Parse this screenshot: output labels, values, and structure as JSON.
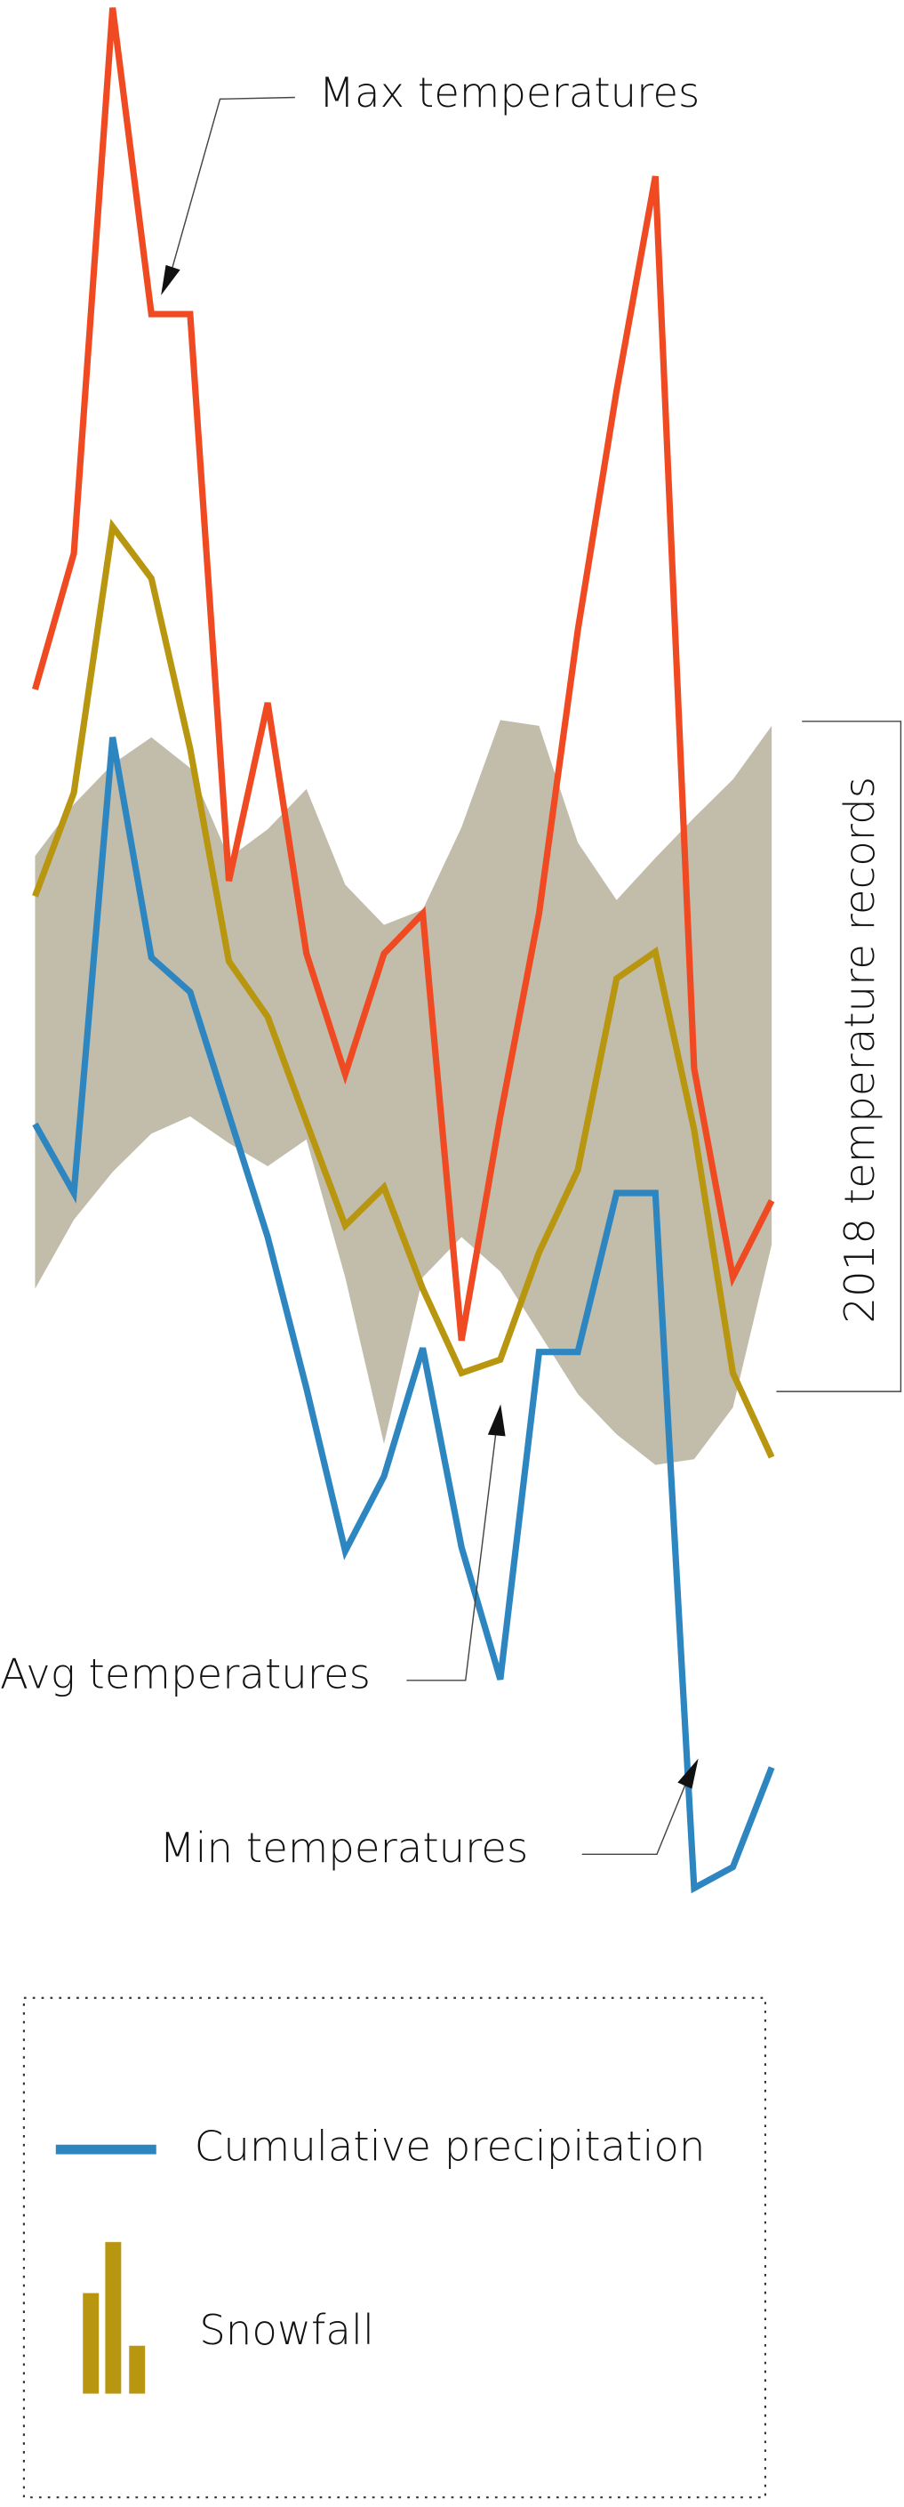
{
  "chart_data": {
    "type": "line",
    "categories": [
      null,
      null,
      null,
      null,
      null,
      null,
      null,
      null,
      null,
      null,
      null,
      null,
      null,
      null,
      null,
      null,
      null,
      null,
      null,
      null
    ],
    "ylim": [
      0,
      100
    ],
    "band": {
      "name": "2018 temperature records",
      "color": "#c2bcab",
      "upper": [
        55.3,
        58,
        60.1,
        61.5,
        59.9,
        55.2,
        56.7,
        58.8,
        53.8,
        51.7,
        52.5,
        56.8,
        62.4,
        62.1,
        56,
        53,
        55.2,
        57.3,
        59.3,
        62.1
      ],
      "lower": [
        32.7,
        36.3,
        38.8,
        40.8,
        41.7,
        40.3,
        39.1,
        40.5,
        33.3,
        24.6,
        33.3,
        35.4,
        33.6,
        30.4,
        27.2,
        25.1,
        23.5,
        23.8,
        26.5,
        35
      ]
    },
    "series": [
      {
        "name": "Max temperatures",
        "color": "#f04a23",
        "values": [
          64,
          71.1,
          99.6,
          83.6,
          83.6,
          54,
          63.3,
          50.2,
          43.9,
          50.2,
          52.3,
          30,
          41.7,
          52.3,
          67.1,
          79.6,
          90.8,
          44.2,
          33.3,
          37.3
        ]
      },
      {
        "name": "Avg temperatures",
        "color": "#b8960f",
        "values": [
          53.2,
          58.6,
          72.5,
          69.8,
          60.9,
          49.8,
          46.9,
          41.4,
          36,
          38,
          32.7,
          28.3,
          29,
          34.6,
          38.9,
          48.9,
          50.3,
          41,
          28.3,
          23.9
        ]
      },
      {
        "name": "Min temperatures",
        "color": "#2e86c1",
        "values": [
          41.3,
          37.7,
          61.5,
          50,
          48.2,
          41.8,
          35.4,
          27.5,
          19,
          22.9,
          29.6,
          19.2,
          12.3,
          29.4,
          29.4,
          37.7,
          37.7,
          1.4,
          2.5,
          7.7
        ]
      }
    ],
    "legend": [
      {
        "name": "Cumulative precipitation",
        "color": "#2e86c1"
      },
      {
        "name": "Snowfall",
        "color": "#b8960f"
      }
    ]
  }
}
